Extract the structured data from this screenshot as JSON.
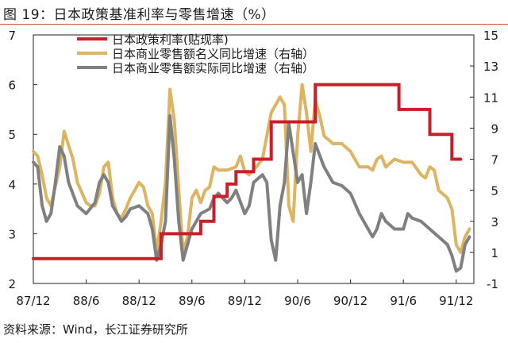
{
  "header": {
    "title": "图 19：日本政策基准利率与零售增速（%）"
  },
  "footer": {
    "source": "资料来源：Wind，长江证券研究所"
  },
  "chart_data": {
    "type": "line",
    "x_ticks": [
      "87/12",
      "88/6",
      "88/12",
      "89/6",
      "89/12",
      "90/6",
      "90/12",
      "91/6",
      "91/12"
    ],
    "x_tick_index": [
      0,
      6,
      12,
      18,
      24,
      30,
      36,
      42,
      48
    ],
    "y_left": {
      "min": 2,
      "max": 7,
      "ticks": [
        2,
        3,
        4,
        5,
        6,
        7
      ]
    },
    "y_right": {
      "min": -1,
      "max": 15,
      "ticks": [
        -1,
        1,
        3,
        5,
        7,
        9,
        11,
        13,
        15
      ]
    },
    "legend_position": "top-right",
    "grid": false,
    "series": [
      {
        "name": "日本政策利率(贴现率)",
        "axis": "left",
        "color": "#cc1e28",
        "step": true,
        "points": [
          [
            0,
            2.5
          ],
          [
            14.5,
            2.5
          ],
          [
            14.5,
            3.0
          ],
          [
            19,
            3.0
          ],
          [
            19,
            3.25
          ],
          [
            20.5,
            3.25
          ],
          [
            20.5,
            3.75
          ],
          [
            22,
            3.75
          ],
          [
            22,
            4.0
          ],
          [
            23,
            4.0
          ],
          [
            23,
            4.25
          ],
          [
            25,
            4.25
          ],
          [
            25,
            4.5
          ],
          [
            27,
            4.5
          ],
          [
            27,
            5.25
          ],
          [
            32,
            5.25
          ],
          [
            32,
            6.0
          ],
          [
            41.5,
            6.0
          ],
          [
            41.5,
            5.5
          ],
          [
            45,
            5.5
          ],
          [
            45,
            5.0
          ],
          [
            47.5,
            5.0
          ],
          [
            47.5,
            4.5
          ],
          [
            48.5,
            4.5
          ]
        ]
      },
      {
        "name": "日本商业零售额名义同比增速（右轴）",
        "axis": "right",
        "color": "#dcb462",
        "step": false,
        "points": [
          [
            0,
            7.5
          ],
          [
            0.5,
            7.2
          ],
          [
            1,
            6.0
          ],
          [
            1.5,
            4.5
          ],
          [
            2,
            4.0
          ],
          [
            3,
            6.5
          ],
          [
            3.5,
            8.8
          ],
          [
            4.5,
            7.0
          ],
          [
            5,
            5.5
          ],
          [
            6,
            4.2
          ],
          [
            6.5,
            4.0
          ],
          [
            7,
            4.0
          ],
          [
            7.5,
            4.8
          ],
          [
            8,
            6.5
          ],
          [
            8.5,
            6.8
          ],
          [
            9,
            4.5
          ],
          [
            9.5,
            3.5
          ],
          [
            10,
            3.2
          ],
          [
            10.5,
            3.8
          ],
          [
            11,
            4.5
          ],
          [
            11.5,
            5.0
          ],
          [
            12,
            5.5
          ],
          [
            12.5,
            5.2
          ],
          [
            13,
            4.0
          ],
          [
            13.5,
            3.5
          ],
          [
            14,
            1.0
          ],
          [
            14.5,
            3.0
          ],
          [
            15,
            5.5
          ],
          [
            15.5,
            11.5
          ],
          [
            16,
            9.5
          ],
          [
            16.5,
            5.0
          ],
          [
            17,
            1.0
          ],
          [
            17.5,
            2.0
          ],
          [
            18,
            4.5
          ],
          [
            18.5,
            5.0
          ],
          [
            19,
            4.2
          ],
          [
            19.5,
            5.0
          ],
          [
            20,
            5.2
          ],
          [
            20.5,
            6.5
          ],
          [
            21,
            6.3
          ],
          [
            22,
            6.3
          ],
          [
            23,
            6.5
          ],
          [
            23.5,
            7.2
          ],
          [
            24,
            6.2
          ],
          [
            24.5,
            6.0
          ],
          [
            25,
            6.3
          ],
          [
            26,
            7.0
          ],
          [
            27,
            10.0
          ],
          [
            28,
            11.0
          ],
          [
            28.5,
            10.5
          ],
          [
            29,
            4.0
          ],
          [
            29.5,
            3.0
          ],
          [
            30,
            8.5
          ],
          [
            30.5,
            11.8
          ],
          [
            31,
            10.0
          ],
          [
            31.5,
            7.5
          ],
          [
            32,
            10.8
          ],
          [
            32.5,
            9.8
          ],
          [
            33,
            8.5
          ],
          [
            34,
            8.0
          ],
          [
            35,
            8.0
          ],
          [
            36,
            7.5
          ],
          [
            37,
            6.5
          ],
          [
            38,
            6.5
          ],
          [
            38.5,
            6.3
          ],
          [
            39,
            7.0
          ],
          [
            39.5,
            7.2
          ],
          [
            40,
            6.5
          ],
          [
            41,
            7.0
          ],
          [
            42,
            6.8
          ],
          [
            43,
            6.8
          ],
          [
            44,
            6.0
          ],
          [
            44.5,
            5.8
          ],
          [
            45,
            6.5
          ],
          [
            45.5,
            6.3
          ],
          [
            46,
            5.0
          ],
          [
            47,
            4.5
          ],
          [
            47.5,
            3.8
          ],
          [
            48,
            1.5
          ],
          [
            48.5,
            1.0
          ],
          [
            49,
            2.0
          ],
          [
            49.5,
            2.5
          ]
        ]
      },
      {
        "name": "日本商业零售额实际同比增速（右轴）",
        "axis": "right",
        "color": "#808080",
        "step": false,
        "points": [
          [
            0,
            6.8
          ],
          [
            0.5,
            6.5
          ],
          [
            1,
            4.0
          ],
          [
            1.5,
            3.0
          ],
          [
            2,
            3.5
          ],
          [
            2.5,
            5.5
          ],
          [
            3,
            7.8
          ],
          [
            3.5,
            7.2
          ],
          [
            4,
            5.5
          ],
          [
            5,
            4.0
          ],
          [
            6,
            3.5
          ],
          [
            7,
            4.2
          ],
          [
            7.5,
            5.5
          ],
          [
            8,
            6.0
          ],
          [
            8.5,
            5.5
          ],
          [
            9,
            4.0
          ],
          [
            10,
            3.0
          ],
          [
            10.5,
            3.3
          ],
          [
            11,
            3.8
          ],
          [
            12,
            4.0
          ],
          [
            13,
            3.5
          ],
          [
            13.5,
            2.5
          ],
          [
            14,
            0.5
          ],
          [
            14.5,
            1.5
          ],
          [
            15,
            3.0
          ],
          [
            15.5,
            9.8
          ],
          [
            16,
            7.0
          ],
          [
            16.5,
            3.0
          ],
          [
            17,
            0.5
          ],
          [
            18,
            2.5
          ],
          [
            19,
            3.5
          ],
          [
            20,
            3.8
          ],
          [
            20.5,
            4.5
          ],
          [
            21,
            4.8
          ],
          [
            22,
            4.2
          ],
          [
            22.5,
            4.5
          ],
          [
            23,
            5.0
          ],
          [
            24,
            3.5
          ],
          [
            24.5,
            4.0
          ],
          [
            25,
            5.5
          ],
          [
            26,
            6.0
          ],
          [
            26.5,
            5.5
          ],
          [
            27,
            1.8
          ],
          [
            27.5,
            0.5
          ],
          [
            28,
            4.0
          ],
          [
            28.5,
            5.5
          ],
          [
            29,
            9.3
          ],
          [
            30,
            5.5
          ],
          [
            30.5,
            6.0
          ],
          [
            31,
            3.5
          ],
          [
            31.5,
            5.5
          ],
          [
            32,
            8.0
          ],
          [
            33,
            6.5
          ],
          [
            34,
            5.5
          ],
          [
            35,
            5.3
          ],
          [
            36,
            4.8
          ],
          [
            37,
            3.5
          ],
          [
            38,
            2.5
          ],
          [
            38.5,
            2.0
          ],
          [
            39,
            2.5
          ],
          [
            39.5,
            3.5
          ],
          [
            40,
            3.0
          ],
          [
            41,
            2.5
          ],
          [
            42,
            2.5
          ],
          [
            42.5,
            3.5
          ],
          [
            43,
            3.2
          ],
          [
            44,
            3.0
          ],
          [
            45,
            2.5
          ],
          [
            46,
            2.0
          ],
          [
            47,
            1.5
          ],
          [
            47.5,
            0.8
          ],
          [
            48,
            -0.2
          ],
          [
            48.5,
            0.0
          ],
          [
            49,
            1.5
          ],
          [
            49.5,
            2.0
          ]
        ]
      }
    ]
  }
}
